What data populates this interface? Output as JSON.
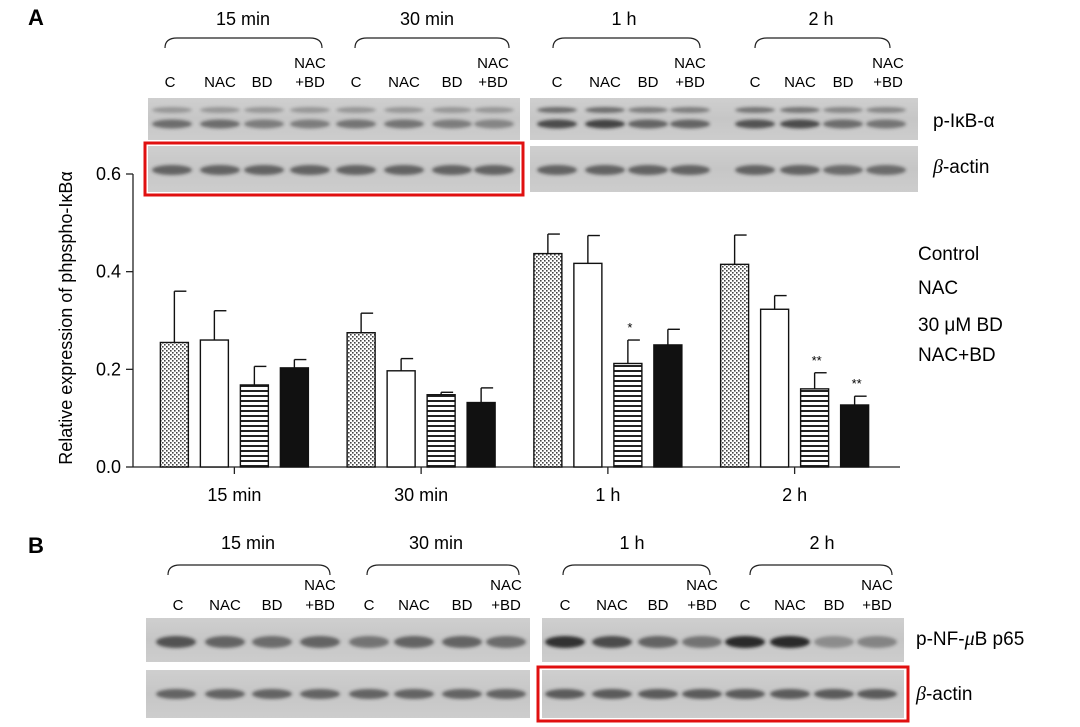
{
  "panel_a": {
    "letter": "A",
    "time_groups": [
      "15 min",
      "30 min",
      "1 h",
      "2 h"
    ],
    "lanes": [
      "C",
      "NAC",
      "BD",
      "NAC\n+BD"
    ],
    "blot_labels": {
      "top": "p-IκB-α",
      "bottom_prefix": "β",
      "bottom_suffix": "-actin"
    },
    "highlight_color": "#e01010"
  },
  "panel_b": {
    "letter": "B",
    "time_groups": [
      "15 min",
      "30 min",
      "1 h",
      "2 h"
    ],
    "lanes": [
      "C",
      "NAC",
      "BD",
      "NAC\n+BD"
    ],
    "blot_labels": {
      "top_prefix": "p-NF-",
      "top_mu": "μ",
      "top_suffix": "B p65",
      "bottom_prefix": "β",
      "bottom_suffix": "-actin"
    },
    "highlight_color": "#e01010"
  },
  "chart_data": {
    "type": "bar",
    "categories": [
      "15 min",
      "30 min",
      "1 h",
      "2 h"
    ],
    "ylabel": "Relative expression of phpspho-IκBα",
    "ylim": [
      0,
      0.6
    ],
    "yticks": [
      "0.0",
      "0.2",
      "0.4",
      "0.6"
    ],
    "legend_placement": "right",
    "series": [
      {
        "name": "Control",
        "pattern": "dotted",
        "values": [
          0.255,
          0.275,
          0.437,
          0.415
        ],
        "errors": [
          0.105,
          0.04,
          0.04,
          0.06
        ],
        "significance": [
          "",
          "",
          "",
          ""
        ]
      },
      {
        "name": "NAC",
        "pattern": "white",
        "values": [
          0.26,
          0.197,
          0.417,
          0.323
        ],
        "errors": [
          0.06,
          0.025,
          0.057,
          0.028
        ],
        "significance": [
          "",
          "",
          "",
          ""
        ]
      },
      {
        "name": "30 μM BD",
        "pattern": "striped",
        "values": [
          0.168,
          0.148,
          0.212,
          0.16
        ],
        "errors": [
          0.038,
          0.005,
          0.048,
          0.033
        ],
        "significance": [
          "",
          "",
          "*",
          "**"
        ]
      },
      {
        "name": "NAC+BD",
        "pattern": "black",
        "values": [
          0.203,
          0.132,
          0.25,
          0.127
        ],
        "errors": [
          0.017,
          0.03,
          0.032,
          0.018
        ],
        "significance": [
          "",
          "",
          "",
          "**"
        ]
      }
    ]
  }
}
